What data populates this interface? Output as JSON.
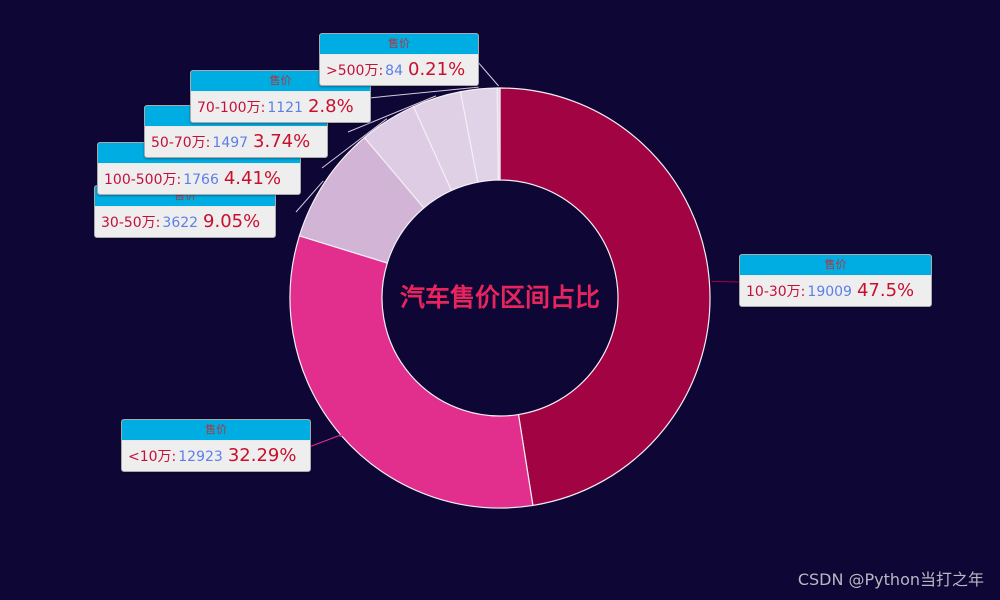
{
  "chart_data": {
    "type": "pie",
    "subtype": "donut",
    "title": "汽车售价区间占比",
    "series_name": "售价",
    "slices": [
      {
        "name": "10-30万",
        "value": 19009,
        "percent": 47.5,
        "color": "#a10343"
      },
      {
        "name": "<10万",
        "value": 12923,
        "percent": 32.29,
        "color": "#e22f8d"
      },
      {
        "name": "30-50万",
        "value": 3622,
        "percent": 9.05,
        "color": "#d2b4d6"
      },
      {
        "name": "100-500万",
        "value": 1766,
        "percent": 4.41,
        "color": "#ddcce4"
      },
      {
        "name": "50-70万",
        "value": 1497,
        "percent": 3.74,
        "color": "#dfd0e6"
      },
      {
        "name": "70-100万",
        "value": 1121,
        "percent": 2.8,
        "color": "#e0d2e7"
      },
      {
        "name": ">500万",
        "value": 84,
        "percent": 0.21,
        "color": "#e2d5e8"
      }
    ],
    "center": [
      500,
      298
    ],
    "inner_radius": 118,
    "outer_radius": 210,
    "legend": "none"
  },
  "labels": [
    {
      "header": "售价",
      "name": "10-30万:",
      "value": "19009",
      "pct": "47.5%"
    },
    {
      "header": "售价",
      "name": "<10万:",
      "value": "12923",
      "pct": "32.29%"
    },
    {
      "header": "售价",
      "name": "30-50万:",
      "value": "3622",
      "pct": "9.05%"
    },
    {
      "header": "售价",
      "name": "100-500万:",
      "value": "1766",
      "pct": "4.41%"
    },
    {
      "header": "售价",
      "name": "50-70万:",
      "value": "1497",
      "pct": "3.74%"
    },
    {
      "header": "售价",
      "name": "70-100万:",
      "value": "1121",
      "pct": "2.8%"
    },
    {
      "header": "售价",
      "name": ">500万:",
      "value": "84",
      "pct": "0.21%"
    }
  ],
  "watermark": "CSDN @Python当打之年",
  "colors": {
    "background": "#0e0635",
    "title": "#e8245f",
    "label_header": "#00ade2",
    "label_body": "#efeeef",
    "label_name": "#c2113b",
    "label_value": "#5b7fe8"
  }
}
